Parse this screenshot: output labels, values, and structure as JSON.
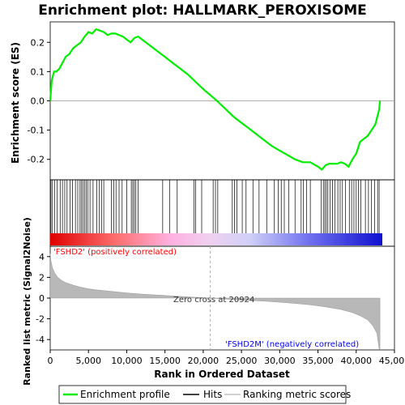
{
  "title": "Enrichment plot: HALLMARK_PEROXISOME",
  "colors": {
    "enrichment_line": "#00ee00",
    "hit_line": "#000000",
    "metric_fill": "#b0b0b0",
    "positive_label": "#ff0000",
    "negative_label": "#0000ff"
  },
  "chart_data": [
    {
      "type": "line",
      "name": "enrichment-profile",
      "ylabel": "Enrichment score (ES)",
      "xlim": [
        0,
        45000
      ],
      "ylim": [
        -0.27,
        0.27
      ],
      "yticks": [
        "0.2",
        "0.1",
        "0.0",
        "-0.1",
        "-0.2"
      ],
      "ytick_values": [
        0.2,
        0.1,
        0.0,
        -0.1,
        -0.2
      ],
      "grid": false,
      "x": [
        0,
        200,
        500,
        800,
        1200,
        1600,
        2000,
        2500,
        3000,
        3500,
        4000,
        4500,
        5000,
        5500,
        6000,
        6500,
        7000,
        7500,
        8000,
        8500,
        9000,
        9500,
        10000,
        10500,
        11000,
        11500,
        12000,
        13000,
        14000,
        15000,
        16000,
        17000,
        18000,
        19000,
        20000,
        20924,
        22000,
        23000,
        24000,
        25000,
        26000,
        27000,
        28000,
        29000,
        30000,
        31000,
        32000,
        33000,
        34000,
        35000,
        35500,
        36000,
        36500,
        37000,
        37500,
        38000,
        38500,
        39000,
        39500,
        40000,
        40500,
        41000,
        41500,
        42000,
        42500,
        43000,
        43100
      ],
      "y": [
        0.0,
        0.07,
        0.1,
        0.1,
        0.11,
        0.13,
        0.15,
        0.16,
        0.18,
        0.19,
        0.2,
        0.22,
        0.235,
        0.23,
        0.245,
        0.24,
        0.235,
        0.225,
        0.23,
        0.23,
        0.225,
        0.22,
        0.21,
        0.2,
        0.215,
        0.22,
        0.21,
        0.19,
        0.17,
        0.15,
        0.13,
        0.11,
        0.09,
        0.065,
        0.04,
        0.02,
        -0.005,
        -0.03,
        -0.055,
        -0.075,
        -0.095,
        -0.115,
        -0.135,
        -0.155,
        -0.17,
        -0.185,
        -0.2,
        -0.21,
        -0.21,
        -0.225,
        -0.235,
        -0.22,
        -0.215,
        -0.215,
        -0.215,
        -0.21,
        -0.215,
        -0.225,
        -0.2,
        -0.18,
        -0.14,
        -0.13,
        -0.12,
        -0.1,
        -0.08,
        -0.03,
        0.0
      ]
    },
    {
      "type": "bar",
      "name": "hits",
      "hit_positions": [
        100,
        300,
        600,
        900,
        1300,
        1600,
        1900,
        2200,
        2600,
        2900,
        3300,
        3600,
        3900,
        4100,
        4300,
        4500,
        4700,
        4900,
        5200,
        5600,
        6100,
        6400,
        6700,
        7000,
        8000,
        8300,
        8600,
        9000,
        9400,
        10000,
        10600,
        10800,
        11000,
        11200,
        11500,
        14700,
        15600,
        16600,
        18800,
        19000,
        19800,
        21300,
        21600,
        21900,
        23800,
        24100,
        24400,
        25100,
        25600,
        26500,
        27300,
        28300,
        29300,
        29800,
        30200,
        30600,
        31200,
        32000,
        32800,
        33100,
        33500,
        34000,
        35400,
        35700,
        35900,
        36100,
        36300,
        36600,
        36900,
        37200,
        37600,
        37900,
        38200,
        38600,
        39100,
        39400,
        39700,
        40000,
        40300,
        40600,
        41200,
        41600,
        42000,
        42400,
        42800,
        43000
      ]
    },
    {
      "type": "area",
      "name": "ranked-list-metric",
      "ylabel": "Ranked list metric (Signal2Noise)",
      "xlabel": "Rank in Ordered Dataset",
      "xlim": [
        0,
        45000
      ],
      "ylim": [
        -5,
        5
      ],
      "xticks": [
        "0",
        "5,000",
        "10,000",
        "15,000",
        "20,000",
        "25,000",
        "30,000",
        "35,000",
        "40,000",
        "45,000"
      ],
      "xtick_values": [
        0,
        5000,
        10000,
        15000,
        20000,
        25000,
        30000,
        35000,
        40000,
        45000
      ],
      "yticks": [
        "4",
        "2",
        "0",
        "-2",
        "-4"
      ],
      "ytick_values": [
        4,
        2,
        0,
        -2,
        -4
      ],
      "x": [
        0,
        100,
        300,
        600,
        1000,
        1500,
        2000,
        3000,
        4000,
        5000,
        6000,
        8000,
        10000,
        12000,
        15000,
        18000,
        20924,
        24000,
        28000,
        31000,
        34000,
        36000,
        38000,
        39500,
        40500,
        41500,
        42200,
        42700,
        43000,
        43100
      ],
      "y": [
        4.3,
        3.6,
        2.9,
        2.4,
        2.0,
        1.7,
        1.5,
        1.25,
        1.05,
        0.9,
        0.8,
        0.65,
        0.5,
        0.38,
        0.25,
        0.12,
        0.0,
        -0.15,
        -0.3,
        -0.45,
        -0.65,
        -0.85,
        -1.1,
        -1.4,
        -1.7,
        -2.1,
        -2.7,
        -3.4,
        -4.9,
        -5.0
      ],
      "annotations": {
        "positive": "'FSHD2' (positively correlated)",
        "negative": "'FSHD2M' (negatively correlated)",
        "zero_cross": "Zero cross at 20924",
        "zero_cross_value": 20924
      }
    }
  ],
  "legend": {
    "items": [
      {
        "label": "Enrichment profile",
        "color": "#00ee00"
      },
      {
        "label": "Hits",
        "color": "#000000"
      },
      {
        "label": "Ranking metric scores",
        "color": "#c0c0c0"
      }
    ]
  }
}
